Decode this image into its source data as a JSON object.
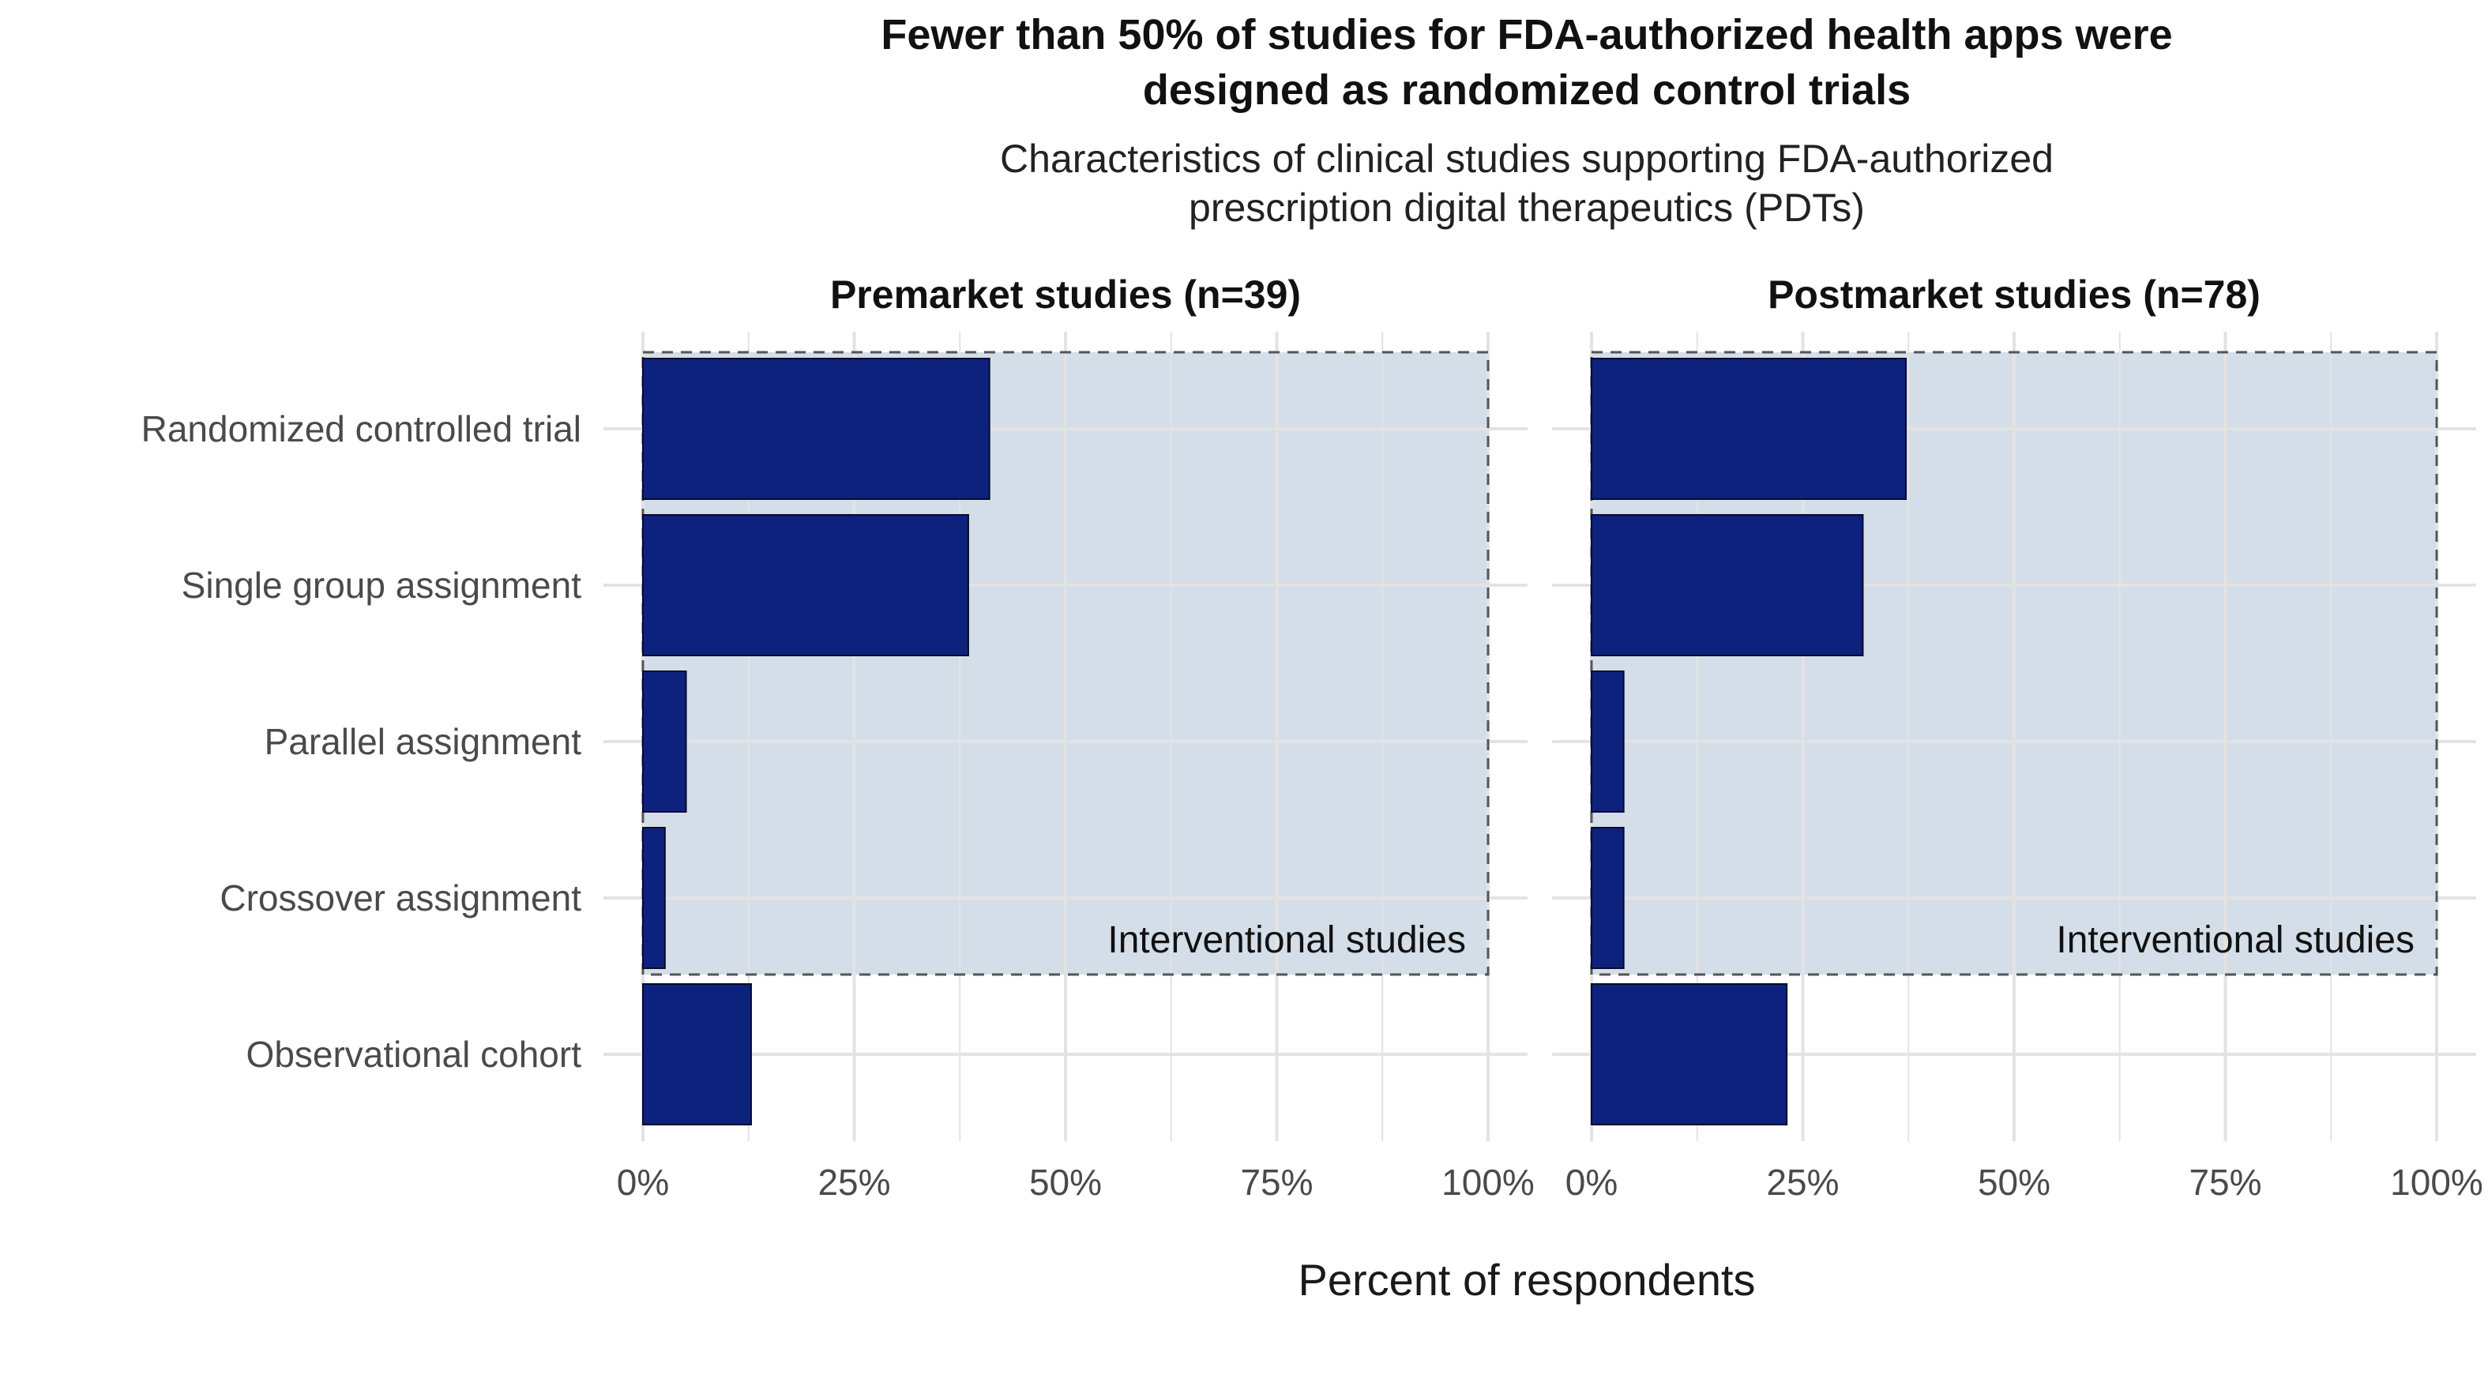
{
  "chart_data": {
    "type": "bar",
    "orientation": "horizontal",
    "title": "Fewer than 50% of studies for FDA-authorized health apps were designed as randomized control trials",
    "subtitle": "Characteristics of clinical studies supporting FDA-authorized prescription digital therapeutics (PDTs)",
    "xlabel": "Percent of respondents",
    "ylabel": "",
    "xlim": [
      0,
      100
    ],
    "x_ticks": [
      "0%",
      "25%",
      "50%",
      "75%",
      "100%"
    ],
    "grid": true,
    "categories": [
      "Randomized controlled trial",
      "Single group assignment",
      "Parallel assignment",
      "Crossover assignment",
      "Observational cohort"
    ],
    "panels": [
      {
        "label": "Premarket studies (n=39)",
        "values": [
          41,
          38.5,
          5.1,
          2.6,
          12.8
        ]
      },
      {
        "label": "Postmarket studies (n=78)",
        "values": [
          37.2,
          32.1,
          3.8,
          3.8,
          23.1
        ]
      }
    ],
    "highlight": {
      "label": "Interventional studies",
      "categories": [
        "Randomized controlled trial",
        "Single group assignment",
        "Parallel assignment",
        "Crossover assignment"
      ]
    },
    "colors": {
      "bar": "#0D227D",
      "bar_outline": "#0A0A2A",
      "highlight_fill": "#D4DEE8",
      "highlight_border": "#555555",
      "grid": "#E3E3E3",
      "text": "#111111",
      "tick_text": "#4A4A4A"
    }
  }
}
